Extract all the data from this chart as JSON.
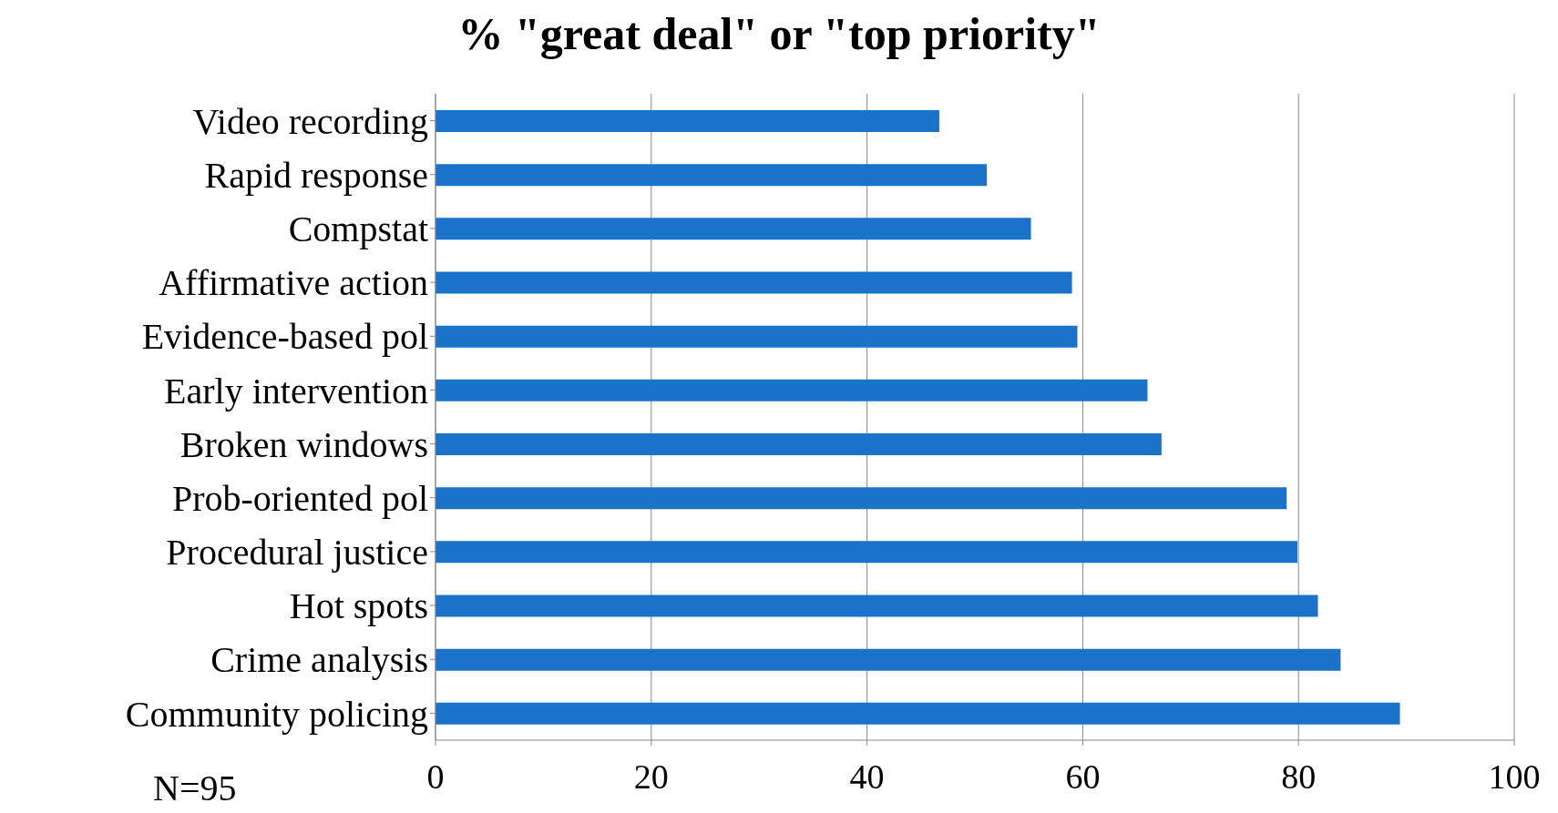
{
  "chart_data": {
    "type": "bar",
    "orientation": "horizontal",
    "title": "% \"great deal\" or \"top priority\"",
    "categories": [
      "Video recording",
      "Rapid response",
      "Compstat",
      "Affirmative action",
      "Evidence-based pol",
      "Early intervention",
      "Broken windows",
      "Prob-oriented pol",
      "Procedural justice",
      "Hot spots",
      "Crime analysis",
      "Community policing"
    ],
    "values": [
      46.7,
      51.1,
      55.2,
      59.0,
      59.5,
      66.0,
      67.3,
      78.9,
      79.9,
      81.8,
      83.9,
      89.4
    ],
    "color": "#1a72c9",
    "xlim": [
      0,
      100
    ],
    "xticks": [
      0,
      20,
      40,
      60,
      80,
      100
    ],
    "grid": "x",
    "annotations": [
      "N=95"
    ]
  }
}
